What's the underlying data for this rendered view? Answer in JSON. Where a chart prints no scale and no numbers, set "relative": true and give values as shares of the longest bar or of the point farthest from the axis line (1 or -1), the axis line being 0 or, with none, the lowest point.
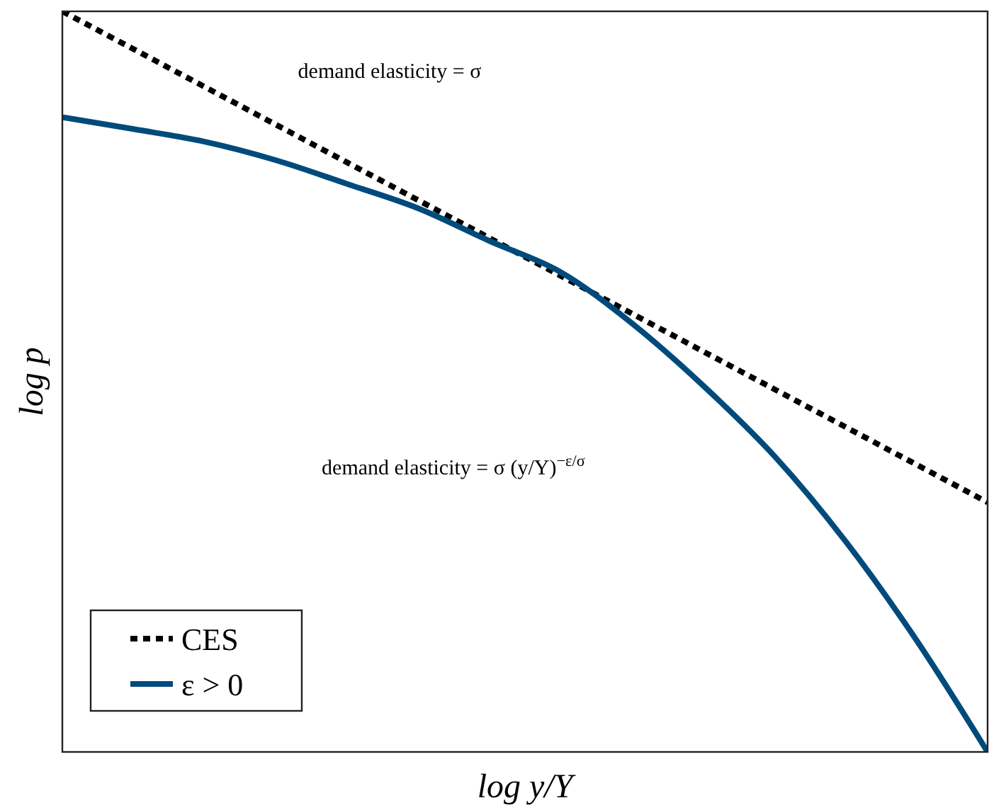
{
  "chart_data": {
    "type": "line",
    "relative": true,
    "xlabel": "log y/Y",
    "ylabel": "log p",
    "legend": "bottom left",
    "categories": [
      null,
      null,
      null,
      null,
      null,
      null,
      null,
      null,
      null,
      null,
      null,
      null,
      null,
      null
    ],
    "annotations": [
      "demand elasticity = σ",
      "demand elasticity = σ (y/Y)$^{−ε/σ}$"
    ],
    "series": [
      {
        "name": "CES",
        "color": "#000000",
        "line_style": "dotted",
        "values": [
          1,
          0.949,
          0.898,
          0.847,
          0.796,
          0.745,
          0.694,
          0.643,
          0.592,
          0.541,
          0.49,
          0.439,
          0.388,
          0.337
        ]
      },
      {
        "name": "ε > 0",
        "color": "#004a7c",
        "line_style": "solid",
        "values": [
          0.857,
          0.841,
          0.824,
          0.799,
          0.767,
          0.734,
          0.69,
          0.648,
          0.579,
          0.495,
          0.4,
          0.285,
          0.151,
          0
        ]
      }
    ]
  }
}
